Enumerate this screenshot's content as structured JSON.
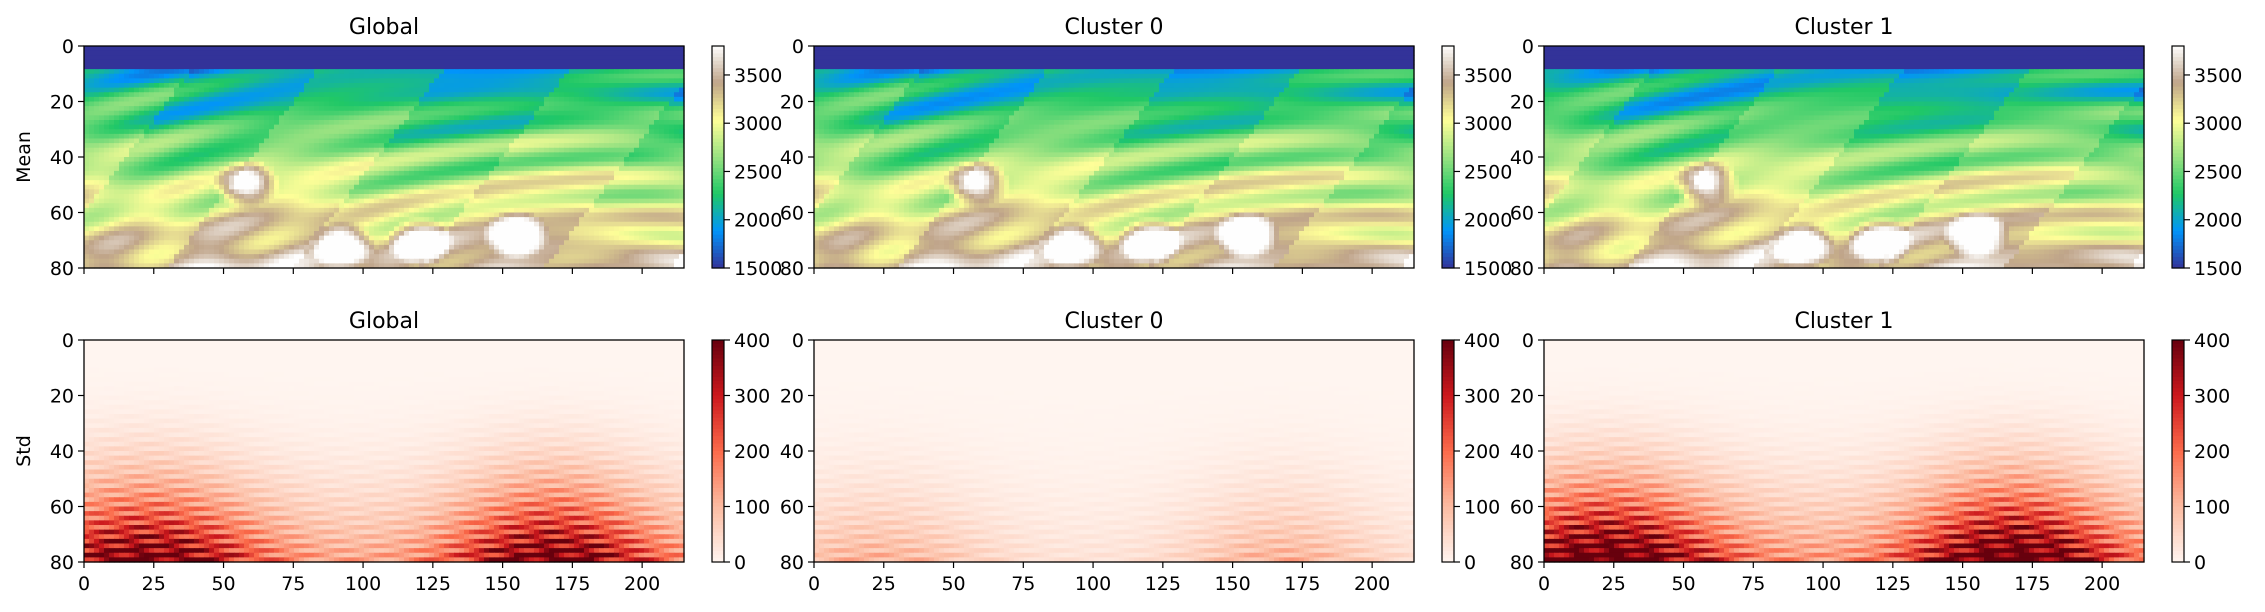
{
  "chart_data": [
    {
      "type": "heatmap",
      "title": "Global",
      "ylabel": "Mean",
      "colormap": "terrain",
      "xlim": [
        0,
        215
      ],
      "ylim": [
        80,
        0
      ],
      "xticks": [
        "0",
        "25",
        "50",
        "75",
        "100",
        "125",
        "150",
        "175",
        "200"
      ],
      "yticks": [
        "0",
        "20",
        "40",
        "60",
        "80"
      ],
      "show_xticklabels": false,
      "colorbar": {
        "min": 1500,
        "max": 3800,
        "ticks": [
          "1500",
          "2000",
          "2500",
          "3000",
          "3500"
        ]
      }
    },
    {
      "type": "heatmap",
      "title": "Cluster 0",
      "ylabel": "",
      "colormap": "terrain",
      "xlim": [
        0,
        215
      ],
      "ylim": [
        80,
        0
      ],
      "xticks": [
        "0",
        "25",
        "50",
        "75",
        "100",
        "125",
        "150",
        "175",
        "200"
      ],
      "yticks": [
        "0",
        "20",
        "40",
        "60",
        "80"
      ],
      "show_xticklabels": false,
      "colorbar": {
        "min": 1500,
        "max": 3800,
        "ticks": [
          "1500",
          "2000",
          "2500",
          "3000",
          "3500"
        ]
      }
    },
    {
      "type": "heatmap",
      "title": "Cluster 1",
      "ylabel": "",
      "colormap": "terrain",
      "xlim": [
        0,
        215
      ],
      "ylim": [
        80,
        0
      ],
      "xticks": [
        "0",
        "25",
        "50",
        "75",
        "100",
        "125",
        "150",
        "175",
        "200"
      ],
      "yticks": [
        "0",
        "20",
        "40",
        "60",
        "80"
      ],
      "show_xticklabels": false,
      "colorbar": {
        "min": 1500,
        "max": 3800,
        "ticks": [
          "1500",
          "2000",
          "2500",
          "3000",
          "3500"
        ]
      }
    },
    {
      "type": "heatmap",
      "title": "Global",
      "ylabel": "Std",
      "colormap": "Reds",
      "xlim": [
        0,
        215
      ],
      "ylim": [
        80,
        0
      ],
      "xticks": [
        "0",
        "25",
        "50",
        "75",
        "100",
        "125",
        "150",
        "175",
        "200"
      ],
      "yticks": [
        "0",
        "20",
        "40",
        "60",
        "80"
      ],
      "show_xticklabels": true,
      "colorbar": {
        "min": 0,
        "max": 400,
        "ticks": [
          "0",
          "100",
          "200",
          "300",
          "400"
        ]
      },
      "intensity": 1.0
    },
    {
      "type": "heatmap",
      "title": "Cluster 0",
      "ylabel": "",
      "colormap": "Reds",
      "xlim": [
        0,
        215
      ],
      "ylim": [
        80,
        0
      ],
      "xticks": [
        "0",
        "25",
        "50",
        "75",
        "100",
        "125",
        "150",
        "175",
        "200"
      ],
      "yticks": [
        "0",
        "20",
        "40",
        "60",
        "80"
      ],
      "show_xticklabels": true,
      "colorbar": {
        "min": 0,
        "max": 400,
        "ticks": [
          "0",
          "100",
          "200",
          "300",
          "400"
        ]
      },
      "intensity": 0.25
    },
    {
      "type": "heatmap",
      "title": "Cluster 1",
      "ylabel": "",
      "colormap": "Reds",
      "xlim": [
        0,
        215
      ],
      "ylim": [
        80,
        0
      ],
      "xticks": [
        "0",
        "25",
        "50",
        "75",
        "100",
        "125",
        "150",
        "175",
        "200"
      ],
      "yticks": [
        "0",
        "20",
        "40",
        "60",
        "80"
      ],
      "show_xticklabels": true,
      "colorbar": {
        "min": 0,
        "max": 400,
        "ticks": [
          "0",
          "100",
          "200",
          "300",
          "400"
        ]
      },
      "intensity": 1.15
    }
  ],
  "colors": {
    "terrain": [
      "#333399",
      "#0194fa",
      "#20c866",
      "#99e281",
      "#fefe98",
      "#bfa489",
      "#fefefe"
    ],
    "reds": [
      "#fff5f0",
      "#fcbba1",
      "#fb6a4a",
      "#cb181d",
      "#67000d"
    ]
  }
}
